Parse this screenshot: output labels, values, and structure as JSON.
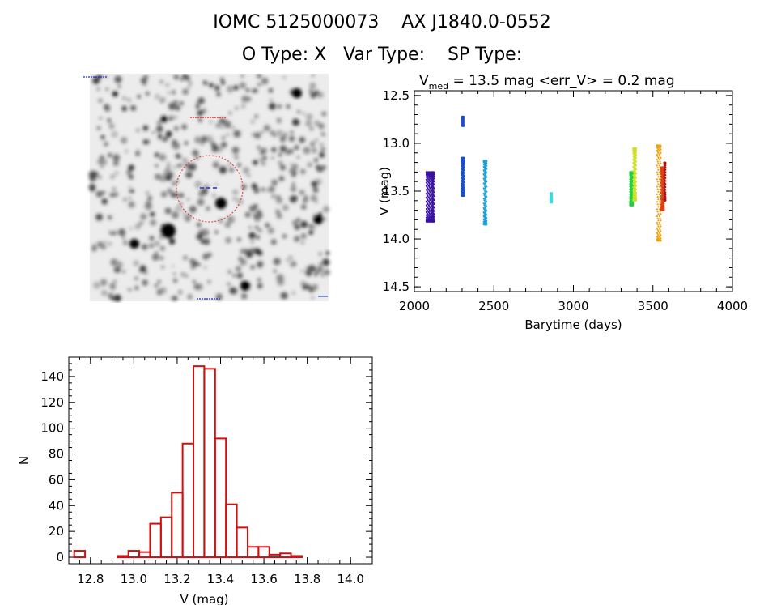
{
  "header": {
    "line1": "IOMC 5125000073    AX J1840.0-0552",
    "line2": "O Type: X   Var Type:    SP Type:"
  },
  "chart_data": [
    {
      "type": "image",
      "description_label": "finder chart",
      "marker_colors": {
        "circle": "#e03030",
        "crosshair": "#2030c0"
      }
    },
    {
      "type": "scatter",
      "title_parts": {
        "V": "V",
        "sub": "med",
        "rest": " = 13.5 mag <err_V> = 0.2 mag"
      },
      "xlabel": "Barytime (days)",
      "ylabel": "V (mag)",
      "xlim": [
        2000,
        4000
      ],
      "ylim": [
        14.55,
        12.45
      ],
      "xticks": [
        2000,
        2500,
        3000,
        3500,
        4000
      ],
      "yticks": [
        12.5,
        13.0,
        13.5,
        14.0,
        14.5
      ],
      "series": [
        {
          "color": "#3a10a0",
          "x": [
            2080,
            2095,
            2110,
            2120
          ],
          "y_min": 13.3,
          "y_max": 13.82
        },
        {
          "color": "#1a4fc8",
          "x": [
            2300,
            2310
          ],
          "y_min": 13.15,
          "y_max": 13.55
        },
        {
          "color": "#1a4fc8",
          "x": [
            2305
          ],
          "y_min": 12.72,
          "y_max": 12.82
        },
        {
          "color": "#1aa0d8",
          "x": [
            2440,
            2450
          ],
          "y_min": 13.18,
          "y_max": 13.85
        },
        {
          "color": "#30e0e0",
          "x": [
            2860
          ],
          "y_min": 13.52,
          "y_max": 13.62
        },
        {
          "color": "#20d040",
          "x": [
            3360,
            3370
          ],
          "y_min": 13.3,
          "y_max": 13.65
        },
        {
          "color": "#d0e020",
          "x": [
            3380,
            3390
          ],
          "y_min": 13.05,
          "y_max": 13.6
        },
        {
          "color": "#f0a010",
          "x": [
            3530,
            3545
          ],
          "y_min": 13.02,
          "y_max": 14.02
        },
        {
          "color": "#e04010",
          "x": [
            3555,
            3565
          ],
          "y_min": 13.25,
          "y_max": 13.7
        },
        {
          "color": "#b01010",
          "x": [
            3575
          ],
          "y_min": 13.2,
          "y_max": 13.6
        }
      ]
    },
    {
      "type": "bar",
      "xlabel": "V (mag)",
      "ylabel": "N",
      "xlim": [
        12.7,
        14.1
      ],
      "ylim": [
        -5,
        155
      ],
      "xticks": [
        12.8,
        13.0,
        13.2,
        13.4,
        13.6,
        13.8,
        14.0
      ],
      "xtick_labels": [
        "12.8",
        "13.0",
        "13.2",
        "13.4",
        "13.6",
        "13.8",
        "14.0"
      ],
      "yticks": [
        0,
        20,
        40,
        60,
        80,
        100,
        120,
        140
      ],
      "bin_width": 0.05,
      "bin_starts": [
        12.75,
        12.8,
        12.85,
        12.9,
        12.95,
        13.0,
        13.05,
        13.1,
        13.15,
        13.2,
        13.25,
        13.3,
        13.35,
        13.4,
        13.45,
        13.5,
        13.55,
        13.6,
        13.65,
        13.7,
        13.75,
        13.8,
        13.85,
        13.9,
        13.95
      ],
      "values": [
        5,
        0,
        0,
        0,
        1,
        5,
        4,
        26,
        31,
        50,
        88,
        148,
        146,
        92,
        41,
        23,
        8,
        8,
        2,
        3,
        1,
        0,
        0,
        0,
        0
      ],
      "color": "#d01010"
    }
  ]
}
